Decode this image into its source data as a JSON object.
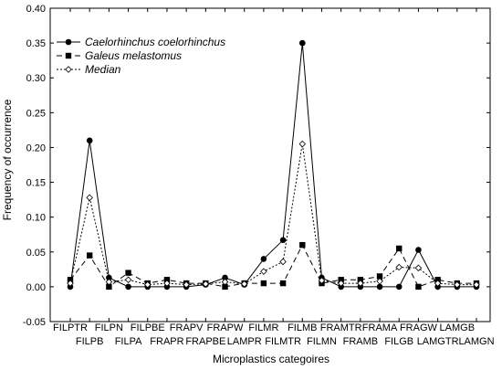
{
  "chart_data": {
    "type": "line",
    "title": "",
    "xlabel": "Microplastics categoires",
    "ylabel": "Frequency of occurrence",
    "ylim": [
      -0.05,
      0.4
    ],
    "yticks": [
      "-0.05",
      "0.00",
      "0.05",
      "0.10",
      "0.15",
      "0.20",
      "0.25",
      "0.30",
      "0.35",
      "0.40"
    ],
    "grid": false,
    "legend_position": "top-left",
    "categories": [
      "FILPTR",
      "FILPB",
      "FILPN",
      "FILPA",
      "FILPBE",
      "FRAPR",
      "FRAPV",
      "FRAPBE",
      "FRAPW",
      "LAMPR",
      "FILMR",
      "FILMTR",
      "FILMB",
      "FILMN",
      "FRAMTR",
      "FRAMB",
      "FRAMA",
      "FILGB",
      "FRAGW",
      "LAMGTR",
      "LAMGB",
      "LAMGN"
    ],
    "series": [
      {
        "name": "Caelorhinchus coelorhinchus",
        "style": "solid",
        "marker": "circle",
        "color": "#000000",
        "values": [
          0.0,
          0.21,
          0.013,
          0.0,
          0.0,
          0.0,
          0.0,
          0.003,
          0.013,
          0.003,
          0.04,
          0.067,
          0.35,
          0.013,
          0.0,
          0.0,
          0.0,
          0.0,
          0.053,
          0.0,
          0.0,
          0.0
        ]
      },
      {
        "name": "Galeus melastomus",
        "style": "dashed",
        "marker": "square",
        "color": "#000000",
        "values": [
          0.01,
          0.045,
          0.0,
          0.02,
          0.005,
          0.01,
          0.005,
          0.005,
          0.0,
          0.005,
          0.005,
          0.005,
          0.06,
          0.005,
          0.01,
          0.01,
          0.015,
          0.055,
          0.0,
          0.01,
          0.005,
          0.005
        ]
      },
      {
        "name": "Median",
        "style": "dotted",
        "marker": "diamond-open",
        "color": "#000000",
        "values": [
          0.005,
          0.128,
          0.007,
          0.01,
          0.003,
          0.005,
          0.003,
          0.004,
          0.007,
          0.004,
          0.022,
          0.036,
          0.205,
          0.009,
          0.005,
          0.005,
          0.008,
          0.028,
          0.027,
          0.005,
          0.003,
          0.003
        ]
      }
    ]
  }
}
